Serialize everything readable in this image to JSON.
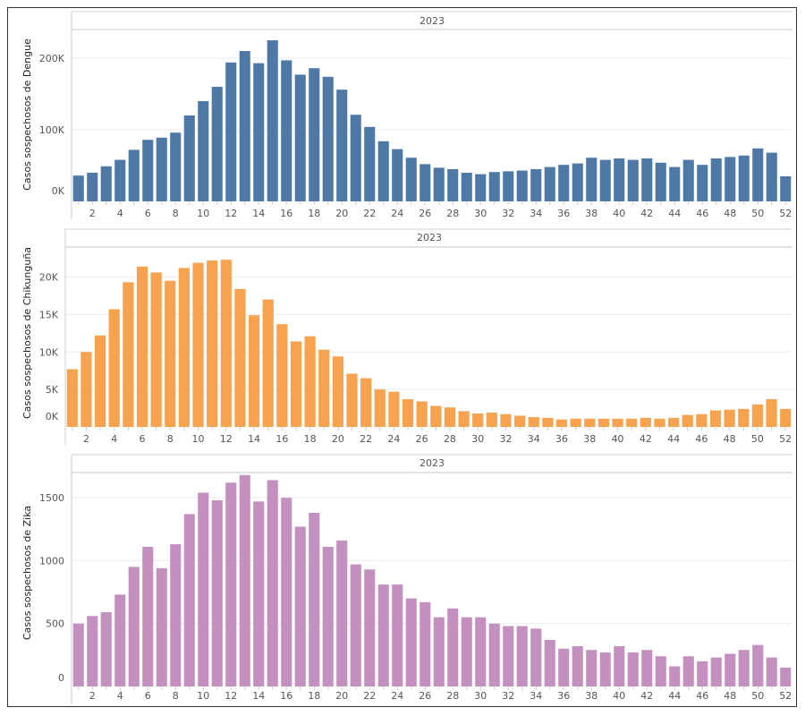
{
  "chart_data": [
    {
      "type": "bar",
      "name": "dengue",
      "header": "2023",
      "ylabel": "Casos sospechosos de Dengue",
      "xlabel": "",
      "color": "#4e79a7",
      "ylim": [
        0,
        240000
      ],
      "yticks": [
        0,
        100000,
        200000
      ],
      "ytick_labels": [
        "0K",
        "100K",
        "200K"
      ],
      "categories": [
        1,
        2,
        3,
        4,
        5,
        6,
        7,
        8,
        9,
        10,
        11,
        12,
        13,
        14,
        15,
        16,
        17,
        18,
        19,
        20,
        21,
        22,
        23,
        24,
        25,
        26,
        27,
        28,
        29,
        30,
        31,
        32,
        33,
        34,
        35,
        36,
        37,
        38,
        39,
        40,
        41,
        42,
        43,
        44,
        45,
        46,
        47,
        48,
        49,
        50,
        51,
        52
      ],
      "xtick_labels": [
        "2",
        "4",
        "6",
        "8",
        "10",
        "12",
        "14",
        "16",
        "18",
        "20",
        "22",
        "24",
        "26",
        "28",
        "30",
        "32",
        "34",
        "36",
        "38",
        "40",
        "42",
        "44",
        "46",
        "48",
        "50",
        "52"
      ],
      "values": [
        36000,
        40000,
        49000,
        58000,
        72000,
        86000,
        89000,
        96000,
        120000,
        140000,
        160000,
        194000,
        210000,
        193000,
        225000,
        197000,
        177000,
        186000,
        174000,
        156000,
        121000,
        104000,
        84000,
        73000,
        61000,
        52000,
        47000,
        45000,
        40000,
        38000,
        41000,
        42000,
        43000,
        45000,
        48000,
        51000,
        53000,
        61000,
        58000,
        60000,
        58000,
        60000,
        54000,
        48000,
        58000,
        51000,
        60000,
        62000,
        64000,
        74000,
        68000,
        35000
      ]
    },
    {
      "type": "bar",
      "name": "chikungunya",
      "header": "2023",
      "ylabel": "Casos sospechosos de Chikunguña",
      "xlabel": "",
      "color": "#f6a24f",
      "ylim": [
        0,
        24000
      ],
      "yticks": [
        0,
        5000,
        10000,
        15000,
        20000
      ],
      "ytick_labels": [
        "0K",
        "5K",
        "10K",
        "15K",
        "20K"
      ],
      "categories": [
        1,
        2,
        3,
        4,
        5,
        6,
        7,
        8,
        9,
        10,
        11,
        12,
        13,
        14,
        15,
        16,
        17,
        18,
        19,
        20,
        21,
        22,
        23,
        24,
        25,
        26,
        27,
        28,
        29,
        30,
        31,
        32,
        33,
        34,
        35,
        36,
        37,
        38,
        39,
        40,
        41,
        42,
        43,
        44,
        45,
        46,
        47,
        48,
        49,
        50,
        51,
        52
      ],
      "xtick_labels": [
        "2",
        "4",
        "6",
        "8",
        "10",
        "12",
        "14",
        "16",
        "18",
        "20",
        "22",
        "24",
        "26",
        "28",
        "30",
        "32",
        "34",
        "36",
        "38",
        "40",
        "42",
        "44",
        "46",
        "48",
        "50",
        "52"
      ],
      "values": [
        7700,
        10000,
        12200,
        15700,
        19300,
        21400,
        20600,
        19500,
        21200,
        21900,
        22200,
        22300,
        18400,
        14900,
        17000,
        13700,
        11400,
        12100,
        10300,
        9400,
        7100,
        6500,
        5000,
        4700,
        3700,
        3400,
        2800,
        2600,
        2100,
        1800,
        1900,
        1700,
        1500,
        1300,
        1200,
        1000,
        1100,
        1100,
        1100,
        1100,
        1100,
        1200,
        1100,
        1200,
        1600,
        1700,
        2200,
        2300,
        2400,
        3000,
        3700,
        2400
      ]
    },
    {
      "type": "bar",
      "name": "zika",
      "header": "2023",
      "ylabel": "Casos sospechosos de Zika",
      "xlabel": "",
      "color": "#c490bf",
      "ylim": [
        0,
        1700
      ],
      "yticks": [
        0,
        500,
        1000,
        1500
      ],
      "ytick_labels": [
        "0",
        "500",
        "1000",
        "1500"
      ],
      "categories": [
        1,
        2,
        3,
        4,
        5,
        6,
        7,
        8,
        9,
        10,
        11,
        12,
        13,
        14,
        15,
        16,
        17,
        18,
        19,
        20,
        21,
        22,
        23,
        24,
        25,
        26,
        27,
        28,
        29,
        30,
        31,
        32,
        33,
        34,
        35,
        36,
        37,
        38,
        39,
        40,
        41,
        42,
        43,
        44,
        45,
        46,
        47,
        48,
        49,
        50,
        51,
        52
      ],
      "xtick_labels": [
        "2",
        "4",
        "6",
        "8",
        "10",
        "12",
        "14",
        "16",
        "18",
        "20",
        "22",
        "24",
        "26",
        "28",
        "30",
        "32",
        "34",
        "36",
        "38",
        "40",
        "42",
        "44",
        "46",
        "48",
        "50",
        "52"
      ],
      "values": [
        500,
        560,
        590,
        730,
        950,
        1110,
        940,
        1130,
        1370,
        1540,
        1480,
        1620,
        1680,
        1470,
        1640,
        1500,
        1270,
        1380,
        1110,
        1160,
        970,
        930,
        810,
        810,
        700,
        670,
        550,
        620,
        550,
        550,
        500,
        480,
        480,
        460,
        370,
        300,
        320,
        290,
        270,
        320,
        270,
        290,
        240,
        160,
        240,
        200,
        230,
        260,
        290,
        330,
        230,
        150
      ]
    }
  ]
}
